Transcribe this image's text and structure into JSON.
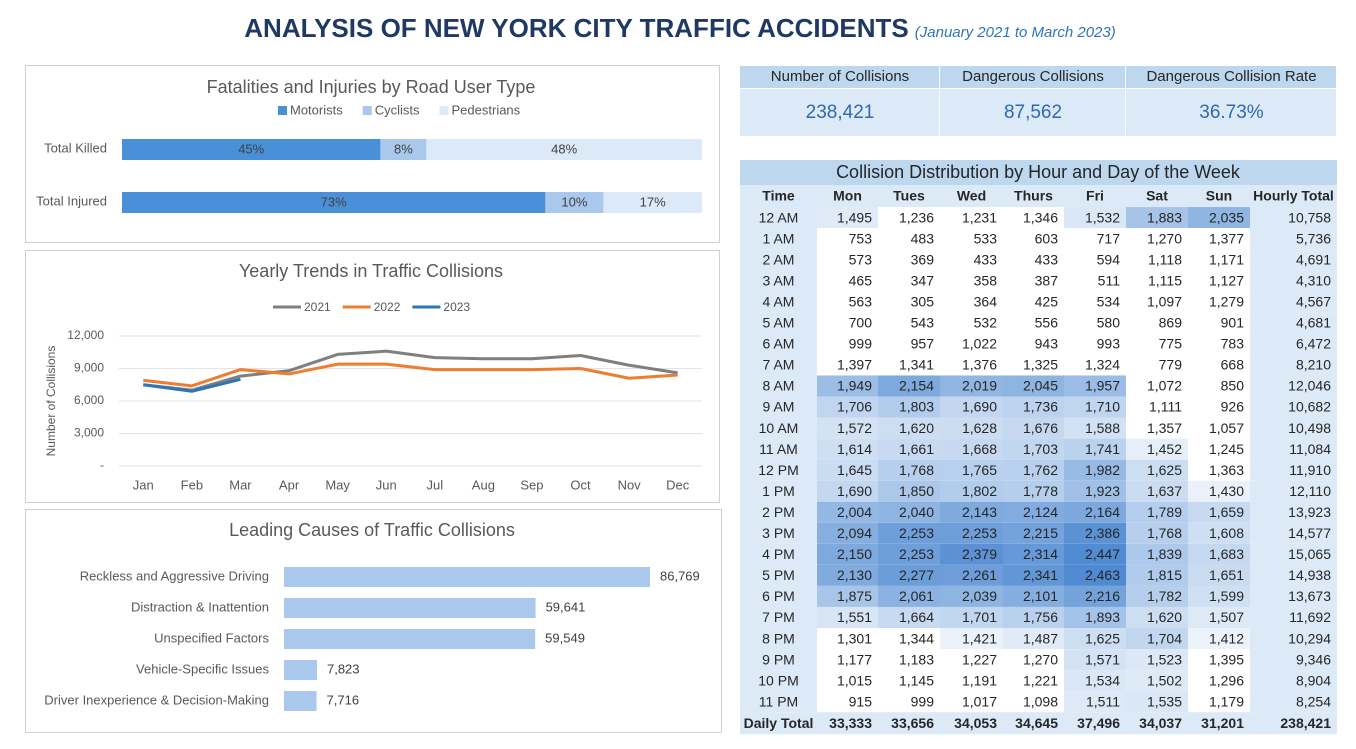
{
  "title": "ANALYSIS OF NEW YORK CITY TRAFFIC ACCIDENTS",
  "subtitle": "(January 2021 to March 2023)",
  "kpis": [
    {
      "label": "Number of Collisions",
      "value": "238,421"
    },
    {
      "label": "Dangerous Collisions",
      "value": "87,562"
    },
    {
      "label": "Dangerous Collision Rate",
      "value": "36.73%"
    }
  ],
  "chart_data": [
    {
      "type": "stacked_hbar",
      "title": "Fatalities and Injuries by Road User Type",
      "categories": [
        "Total Killed",
        "Total Injured"
      ],
      "series": [
        {
          "name": "Motorists",
          "color": "#4a90d9",
          "values": [
            45,
            73
          ],
          "value_labels": [
            "45%",
            "73%"
          ]
        },
        {
          "name": "Cyclists",
          "color": "#a9c8ec",
          "values": [
            8,
            10
          ],
          "value_labels": [
            "8%",
            "10%"
          ]
        },
        {
          "name": "Pedestrians",
          "color": "#dce9f7",
          "values": [
            48,
            17
          ],
          "value_labels": [
            "48%",
            "17%"
          ]
        }
      ]
    },
    {
      "type": "line",
      "title": "Yearly Trends in Traffic Collisions",
      "y_label": "Number of Collisions",
      "categories": [
        "Jan",
        "Feb",
        "Mar",
        "Apr",
        "May",
        "Jun",
        "Jul",
        "Aug",
        "Sep",
        "Oct",
        "Nov",
        "Dec"
      ],
      "ylim": [
        0,
        12000
      ],
      "yticks": [
        {
          "value": 0,
          "label": "-"
        },
        {
          "value": 3000,
          "label": "3,000"
        },
        {
          "value": 6000,
          "label": "6,000"
        },
        {
          "value": 9000,
          "label": "9,000"
        },
        {
          "value": 12000,
          "label": "12,000"
        }
      ],
      "grid": true,
      "series": [
        {
          "name": "2021",
          "color": "#7f7f7f",
          "values": [
            7500,
            7000,
            8300,
            8800,
            10300,
            10600,
            10000,
            9900,
            9900,
            10200,
            9300,
            8600
          ]
        },
        {
          "name": "2022",
          "color": "#ed7d31",
          "values": [
            7900,
            7400,
            8900,
            8500,
            9400,
            9400,
            8900,
            8900,
            8900,
            9000,
            8100,
            8400
          ]
        },
        {
          "name": "2023",
          "color": "#2e75b6",
          "values": [
            7500,
            6900,
            8000,
            null,
            null,
            null,
            null,
            null,
            null,
            null,
            null,
            null
          ]
        }
      ]
    },
    {
      "type": "hbar",
      "title": "Leading Causes of Traffic Collisions",
      "color": "#a9c8ec",
      "categories": [
        "Reckless and Aggressive Driving",
        "Distraction & Inattention",
        "Unspecified Factors",
        "Vehicle-Specific Issues",
        "Driver Inexperience & Decision-Making"
      ],
      "values": [
        86769,
        59641,
        59549,
        7823,
        7716
      ],
      "value_labels": [
        "86,769",
        "59,641",
        "59,549",
        "7,823",
        "7,716"
      ]
    },
    {
      "type": "heatmap",
      "title": "Collision Distribution by Hour and Day of the Week",
      "columns": [
        "Time",
        "Mon",
        "Tues",
        "Wed",
        "Thurs",
        "Fri",
        "Sat",
        "Sun",
        "Hourly Total"
      ],
      "rows": [
        {
          "label": "12 AM",
          "cells": [
            "1,495",
            "1,236",
            "1,231",
            "1,346",
            "1,532",
            "1,883",
            "2,035"
          ],
          "total": "10,758"
        },
        {
          "label": "1 AM",
          "cells": [
            "753",
            "483",
            "533",
            "603",
            "717",
            "1,270",
            "1,377"
          ],
          "total": "5,736"
        },
        {
          "label": "2 AM",
          "cells": [
            "573",
            "369",
            "433",
            "433",
            "594",
            "1,118",
            "1,171"
          ],
          "total": "4,691"
        },
        {
          "label": "3 AM",
          "cells": [
            "465",
            "347",
            "358",
            "387",
            "511",
            "1,115",
            "1,127"
          ],
          "total": "4,310"
        },
        {
          "label": "4 AM",
          "cells": [
            "563",
            "305",
            "364",
            "425",
            "534",
            "1,097",
            "1,279"
          ],
          "total": "4,567"
        },
        {
          "label": "5 AM",
          "cells": [
            "700",
            "543",
            "532",
            "556",
            "580",
            "869",
            "901"
          ],
          "total": "4,681"
        },
        {
          "label": "6 AM",
          "cells": [
            "999",
            "957",
            "1,022",
            "943",
            "993",
            "775",
            "783"
          ],
          "total": "6,472"
        },
        {
          "label": "7 AM",
          "cells": [
            "1,397",
            "1,341",
            "1,376",
            "1,325",
            "1,324",
            "779",
            "668"
          ],
          "total": "8,210"
        },
        {
          "label": "8 AM",
          "cells": [
            "1,949",
            "2,154",
            "2,019",
            "2,045",
            "1,957",
            "1,072",
            "850"
          ],
          "total": "12,046"
        },
        {
          "label": "9 AM",
          "cells": [
            "1,706",
            "1,803",
            "1,690",
            "1,736",
            "1,710",
            "1,111",
            "926"
          ],
          "total": "10,682"
        },
        {
          "label": "10 AM",
          "cells": [
            "1,572",
            "1,620",
            "1,628",
            "1,676",
            "1,588",
            "1,357",
            "1,057"
          ],
          "total": "10,498"
        },
        {
          "label": "11 AM",
          "cells": [
            "1,614",
            "1,661",
            "1,668",
            "1,703",
            "1,741",
            "1,452",
            "1,245"
          ],
          "total": "11,084"
        },
        {
          "label": "12 PM",
          "cells": [
            "1,645",
            "1,768",
            "1,765",
            "1,762",
            "1,982",
            "1,625",
            "1,363"
          ],
          "total": "11,910"
        },
        {
          "label": "1 PM",
          "cells": [
            "1,690",
            "1,850",
            "1,802",
            "1,778",
            "1,923",
            "1,637",
            "1,430"
          ],
          "total": "12,110"
        },
        {
          "label": "2 PM",
          "cells": [
            "2,004",
            "2,040",
            "2,143",
            "2,124",
            "2,164",
            "1,789",
            "1,659"
          ],
          "total": "13,923"
        },
        {
          "label": "3 PM",
          "cells": [
            "2,094",
            "2,253",
            "2,253",
            "2,215",
            "2,386",
            "1,768",
            "1,608"
          ],
          "total": "14,577"
        },
        {
          "label": "4 PM",
          "cells": [
            "2,150",
            "2,253",
            "2,379",
            "2,314",
            "2,447",
            "1,839",
            "1,683"
          ],
          "total": "15,065"
        },
        {
          "label": "5 PM",
          "cells": [
            "2,130",
            "2,277",
            "2,261",
            "2,341",
            "2,463",
            "1,815",
            "1,651"
          ],
          "total": "14,938"
        },
        {
          "label": "6 PM",
          "cells": [
            "1,875",
            "2,061",
            "2,039",
            "2,101",
            "2,216",
            "1,782",
            "1,599"
          ],
          "total": "13,673"
        },
        {
          "label": "7 PM",
          "cells": [
            "1,551",
            "1,664",
            "1,701",
            "1,756",
            "1,893",
            "1,620",
            "1,507"
          ],
          "total": "11,692"
        },
        {
          "label": "8 PM",
          "cells": [
            "1,301",
            "1,344",
            "1,421",
            "1,487",
            "1,625",
            "1,704",
            "1,412"
          ],
          "total": "10,294"
        },
        {
          "label": "9 PM",
          "cells": [
            "1,177",
            "1,183",
            "1,227",
            "1,270",
            "1,571",
            "1,523",
            "1,395"
          ],
          "total": "9,346"
        },
        {
          "label": "10 PM",
          "cells": [
            "1,015",
            "1,145",
            "1,191",
            "1,221",
            "1,534",
            "1,502",
            "1,296"
          ],
          "total": "8,904"
        },
        {
          "label": "11 PM",
          "cells": [
            "915",
            "999",
            "1,017",
            "1,098",
            "1,511",
            "1,535",
            "1,179"
          ],
          "total": "8,254"
        }
      ],
      "total_row": {
        "label": "Daily Total",
        "cells": [
          "33,333",
          "33,656",
          "34,053",
          "34,645",
          "37,496",
          "34,037",
          "31,201"
        ],
        "total": "238,421"
      }
    }
  ]
}
